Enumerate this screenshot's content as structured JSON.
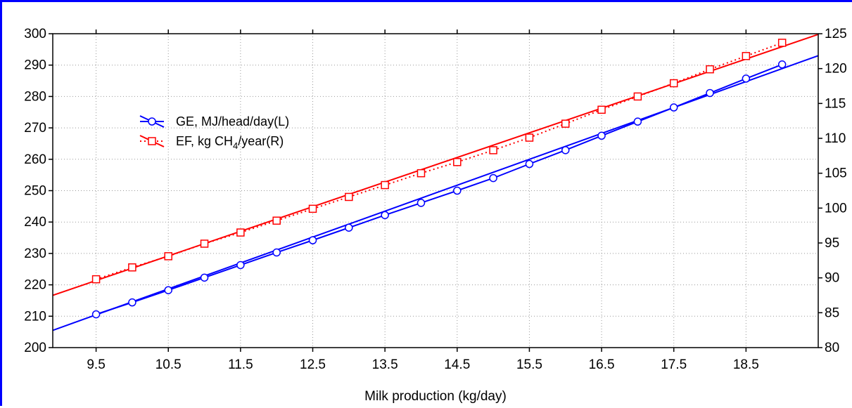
{
  "chart_data": {
    "type": "line",
    "xlabel": "Milk production (kg/day)",
    "x_ticks": [
      9.5,
      10.5,
      11.5,
      12.5,
      13.5,
      14.5,
      15.5,
      16.5,
      17.5,
      18.5
    ],
    "xlim": [
      8.9,
      19.5
    ],
    "left_axis": {
      "ylim": [
        200,
        300
      ],
      "ticks": [
        200,
        210,
        220,
        230,
        240,
        250,
        260,
        270,
        280,
        290,
        300
      ]
    },
    "right_axis": {
      "ylim": [
        80,
        125
      ],
      "ticks": [
        80,
        85,
        90,
        95,
        100,
        105,
        110,
        115,
        120,
        125
      ]
    },
    "grid": true,
    "legend_position": "upper-left",
    "x": [
      9.5,
      10,
      10.5,
      11,
      11.5,
      12,
      12.5,
      13,
      13.5,
      14,
      14.5,
      15,
      15.5,
      16,
      16.5,
      17,
      17.5,
      18,
      18.5,
      19
    ],
    "series": [
      {
        "name": "GE, MJ/head/day(L)",
        "axis": "left",
        "color": "#0000ff",
        "marker": "circle",
        "values": [
          210.6,
          214.4,
          218.3,
          222.3,
          226.3,
          230.3,
          234.2,
          238.2,
          242.2,
          246.1,
          250.0,
          254.0,
          258.5,
          262.9,
          267.5,
          272.0,
          276.5,
          281.1,
          285.7,
          290.2
        ],
        "fit": {
          "x": [
            8.9,
            19.5
          ],
          "y": [
            205.5,
            293.0
          ],
          "style": "solid"
        }
      },
      {
        "name": "EF, kg CH4/year(R)",
        "name_parts": [
          "EF, kg CH",
          "4",
          "/year(R)"
        ],
        "axis": "right",
        "color": "#ff0000",
        "marker": "square",
        "values": [
          89.8,
          91.5,
          93.1,
          94.9,
          96.5,
          98.2,
          99.9,
          101.6,
          103.3,
          105.0,
          106.6,
          108.3,
          110.1,
          112.1,
          114.1,
          116.0,
          117.9,
          119.9,
          121.8,
          123.7
        ],
        "fit": {
          "x": [
            8.9,
            19.5
          ],
          "y": [
            87.5,
            124.9
          ],
          "style": "solid"
        }
      }
    ]
  }
}
